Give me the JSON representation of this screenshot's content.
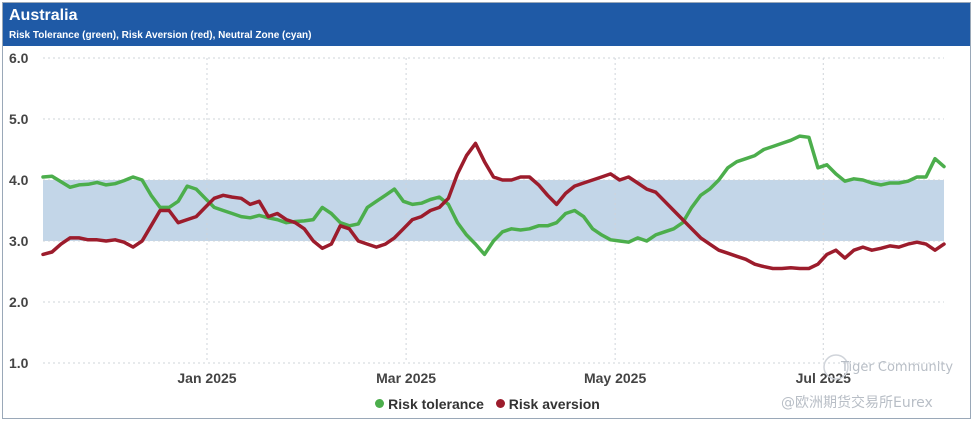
{
  "header": {
    "title": "Australia",
    "subtitle": "Risk Tolerance (green), Risk Aversion (red), Neutral Zone (cyan)"
  },
  "watermark": {
    "line1": "Tiger Community",
    "line2": "@欧洲期货交易所Eurex"
  },
  "chart_data": {
    "type": "line",
    "title": "Australia",
    "subtitle": "Risk Tolerance (green), Risk Aversion (red), Neutral Zone (cyan)",
    "ylim": [
      1.0,
      6.0
    ],
    "yticks": [
      "1.0",
      "2.0",
      "3.0",
      "4.0",
      "5.0",
      "6.0"
    ],
    "xlim": [
      0,
      100
    ],
    "xticks": [
      {
        "label": "Jan 2025",
        "x": 18.2
      },
      {
        "label": "Mar 2025",
        "x": 40.3
      },
      {
        "label": "May 2025",
        "x": 63.5
      },
      {
        "label": "Jul 2025",
        "x": 86.6
      }
    ],
    "neutral_zone": [
      3.0,
      4.0
    ],
    "grid": true,
    "legend_position": "bottom",
    "series": [
      {
        "name": "Risk tolerance",
        "color": "#4cae4c",
        "x": [
          0,
          1,
          2,
          3,
          4,
          5,
          6,
          7,
          8,
          9,
          10,
          11,
          12,
          13,
          14,
          15,
          16,
          17,
          18,
          19,
          20,
          21,
          22,
          23,
          24,
          25,
          26,
          27,
          28,
          29,
          30,
          31,
          32,
          33,
          34,
          35,
          36,
          37,
          38,
          39,
          40,
          41,
          42,
          43,
          44,
          45,
          46,
          47,
          48,
          49,
          50,
          51,
          52,
          53,
          54,
          55,
          56,
          57,
          58,
          59,
          60,
          61,
          62,
          63,
          64,
          65,
          66,
          67,
          68,
          69,
          70,
          71,
          72,
          73,
          74,
          75,
          76,
          77,
          78,
          79,
          80,
          81,
          82,
          83,
          84,
          85,
          86,
          87,
          88,
          89,
          90,
          91,
          92,
          93,
          94,
          95,
          96,
          97,
          98,
          99,
          100
        ],
        "values": [
          4.05,
          4.06,
          3.97,
          3.88,
          3.92,
          3.93,
          3.96,
          3.92,
          3.94,
          3.99,
          4.05,
          4.0,
          3.75,
          3.55,
          3.55,
          3.65,
          3.9,
          3.85,
          3.7,
          3.55,
          3.5,
          3.45,
          3.4,
          3.38,
          3.42,
          3.38,
          3.35,
          3.3,
          3.32,
          3.33,
          3.35,
          3.55,
          3.45,
          3.3,
          3.25,
          3.28,
          3.55,
          3.65,
          3.75,
          3.85,
          3.65,
          3.6,
          3.62,
          3.68,
          3.72,
          3.6,
          3.3,
          3.1,
          2.95,
          2.78,
          3.0,
          3.15,
          3.2,
          3.18,
          3.2,
          3.25,
          3.25,
          3.3,
          3.45,
          3.5,
          3.4,
          3.2,
          3.1,
          3.02,
          3.0,
          2.98,
          3.05,
          3.0,
          3.1,
          3.15,
          3.2,
          3.3,
          3.55,
          3.75,
          3.85,
          4.0,
          4.2,
          4.3,
          4.35,
          4.4,
          4.5,
          4.55,
          4.6,
          4.65,
          4.72,
          4.7,
          4.2,
          4.25,
          4.1,
          3.98,
          4.02,
          4.0,
          3.95,
          3.92,
          3.95,
          3.95,
          3.98,
          4.05,
          4.05,
          4.35,
          4.22
        ]
      },
      {
        "name": "Risk aversion",
        "color": "#9c1c2c",
        "x": [
          0,
          1,
          2,
          3,
          4,
          5,
          6,
          7,
          8,
          9,
          10,
          11,
          12,
          13,
          14,
          15,
          16,
          17,
          18,
          19,
          20,
          21,
          22,
          23,
          24,
          25,
          26,
          27,
          28,
          29,
          30,
          31,
          32,
          33,
          34,
          35,
          36,
          37,
          38,
          39,
          40,
          41,
          42,
          43,
          44,
          45,
          46,
          47,
          48,
          49,
          50,
          51,
          52,
          53,
          54,
          55,
          56,
          57,
          58,
          59,
          60,
          61,
          62,
          63,
          64,
          65,
          66,
          67,
          68,
          69,
          70,
          71,
          72,
          73,
          74,
          75,
          76,
          77,
          78,
          79,
          80,
          81,
          82,
          83,
          84,
          85,
          86,
          87,
          88,
          89,
          90,
          91,
          92,
          93,
          94,
          95,
          96,
          97,
          98,
          99,
          100
        ],
        "values": [
          2.78,
          2.82,
          2.95,
          3.05,
          3.05,
          3.02,
          3.02,
          3.0,
          3.02,
          2.98,
          2.9,
          3.0,
          3.25,
          3.5,
          3.5,
          3.3,
          3.35,
          3.4,
          3.55,
          3.7,
          3.75,
          3.72,
          3.7,
          3.6,
          3.65,
          3.4,
          3.45,
          3.35,
          3.3,
          3.2,
          3.0,
          2.88,
          2.95,
          3.25,
          3.2,
          3.0,
          2.95,
          2.9,
          2.95,
          3.05,
          3.2,
          3.35,
          3.4,
          3.5,
          3.55,
          3.7,
          4.1,
          4.4,
          4.6,
          4.3,
          4.05,
          4.0,
          4.0,
          4.05,
          4.05,
          3.92,
          3.75,
          3.6,
          3.78,
          3.9,
          3.95,
          4.0,
          4.05,
          4.1,
          4.0,
          4.05,
          3.95,
          3.85,
          3.8,
          3.65,
          3.5,
          3.35,
          3.2,
          3.05,
          2.95,
          2.85,
          2.8,
          2.75,
          2.7,
          2.62,
          2.58,
          2.55,
          2.55,
          2.56,
          2.55,
          2.55,
          2.62,
          2.78,
          2.85,
          2.72,
          2.85,
          2.9,
          2.85,
          2.88,
          2.92,
          2.9,
          2.95,
          2.98,
          2.95,
          2.85,
          2.95
        ]
      }
    ]
  }
}
